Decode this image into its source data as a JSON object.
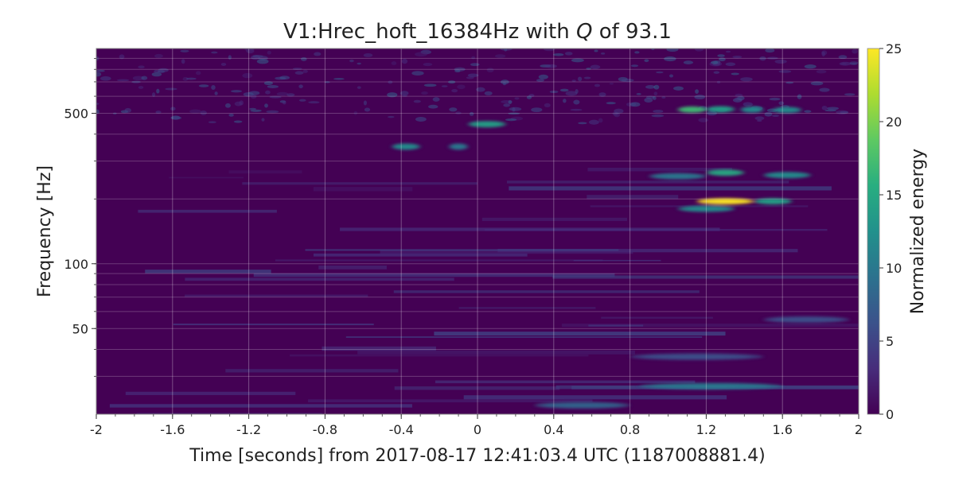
{
  "chart_data": {
    "type": "heatmap",
    "title": "V1:Hrec_hoft_16384Hz with Q of 93.1",
    "title_parts": [
      "V1:Hrec_hoft_16384Hz with ",
      "Q",
      " of 93.1"
    ],
    "xlabel": "Time [seconds] from 2017-08-17 12:41:03.4 UTC (1187008881.4)",
    "ylabel": "Frequency [Hz]",
    "xlim": [
      -2,
      2
    ],
    "ylim": [
      20,
      1000
    ],
    "yscale": "log",
    "x_ticks": [
      -2,
      -1.6,
      -1.2,
      -0.8,
      -0.4,
      0,
      0.4,
      0.8,
      1.2,
      1.6,
      2
    ],
    "x_tick_labels": [
      "-2",
      "-1.6",
      "-1.2",
      "-0.8",
      "-0.4",
      "0",
      "0.4",
      "0.8",
      "1.2",
      "1.6",
      "2"
    ],
    "y_ticks": [
      50,
      100,
      500
    ],
    "y_tick_labels": [
      "50",
      "100",
      "500"
    ],
    "grid": true,
    "colormap": "viridis",
    "colorbar": {
      "label": "Normalized energy",
      "range": [
        0,
        25
      ],
      "ticks": [
        0,
        5,
        10,
        15,
        20,
        25
      ],
      "tick_labels": [
        "0",
        "5",
        "10",
        "15",
        "20",
        "25"
      ]
    },
    "features": [
      {
        "t0": 1.15,
        "t1": 1.45,
        "f": 195,
        "energy": 25
      },
      {
        "t0": 1.45,
        "t1": 1.65,
        "f": 195,
        "energy": 14
      },
      {
        "t0": 1.05,
        "t1": 1.35,
        "f": 180,
        "energy": 12
      },
      {
        "t0": 0.9,
        "t1": 1.2,
        "f": 255,
        "energy": 10
      },
      {
        "t0": 1.2,
        "t1": 1.4,
        "f": 265,
        "energy": 15
      },
      {
        "t0": 1.5,
        "t1": 1.75,
        "f": 258,
        "energy": 12
      },
      {
        "t0": 1.05,
        "t1": 1.2,
        "f": 520,
        "energy": 17
      },
      {
        "t0": 1.2,
        "t1": 1.35,
        "f": 522,
        "energy": 14
      },
      {
        "t0": 1.38,
        "t1": 1.5,
        "f": 520,
        "energy": 12
      },
      {
        "t0": 1.55,
        "t1": 1.7,
        "f": 518,
        "energy": 12
      },
      {
        "t0": -0.45,
        "t1": -0.3,
        "f": 350,
        "energy": 12
      },
      {
        "t0": -0.15,
        "t1": -0.05,
        "f": 350,
        "energy": 10
      },
      {
        "t0": -0.05,
        "t1": 0.15,
        "f": 445,
        "energy": 14
      },
      {
        "t0": 0.85,
        "t1": 1.6,
        "f": 27,
        "energy": 10
      },
      {
        "t0": 0.3,
        "t1": 0.8,
        "f": 22,
        "energy": 8
      },
      {
        "t0": 0.8,
        "t1": 1.5,
        "f": 37,
        "energy": 6
      },
      {
        "t0": 1.5,
        "t1": 1.95,
        "f": 55,
        "energy": 6
      }
    ]
  }
}
